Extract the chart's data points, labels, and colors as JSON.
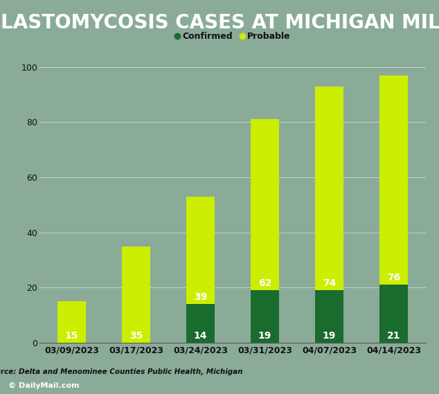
{
  "title": "BLASTOMYCOSIS CASES AT MICHIGAN MILL",
  "categories": [
    "03/09/2023",
    "03/17/2023",
    "03/24/2023",
    "03/31/2023",
    "04/07/2023",
    "04/14/2023"
  ],
  "confirmed": [
    0,
    0,
    14,
    19,
    19,
    21
  ],
  "probable": [
    15,
    35,
    39,
    62,
    74,
    76
  ],
  "confirmed_color": "#1a6b2e",
  "probable_color": "#ccee00",
  "background_color": "#8aab98",
  "title_bg_color": "#111111",
  "title_text_color": "#ffffff",
  "source_text": "Source: Delta and Menominee Counties Public Health, Michigan",
  "watermark": "© DailyMail.com",
  "watermark_bg": "#444444",
  "ylim": [
    0,
    100
  ],
  "yticks": [
    0,
    20,
    40,
    60,
    80,
    100
  ],
  "confirmed_label": "Confirmed",
  "probable_label": "Probable",
  "bar_width": 0.45,
  "title_fontsize": 20,
  "tick_fontsize": 9,
  "label_fontsize": 10
}
